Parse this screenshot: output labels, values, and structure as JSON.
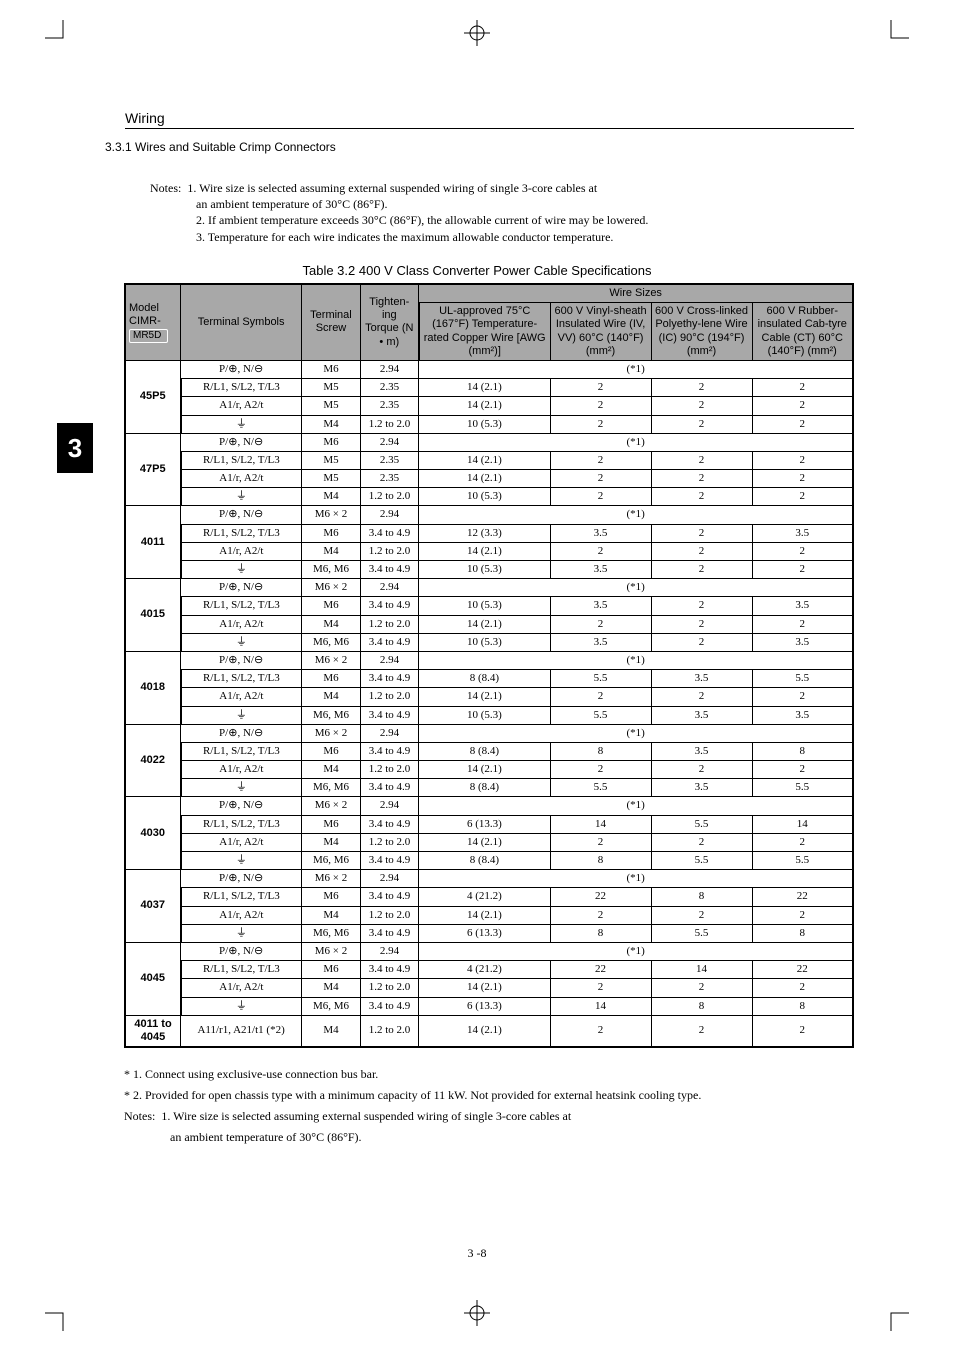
{
  "running_head": "Wiring",
  "subhead": "3.3.1 Wires and Suitable Crimp Connectors",
  "chapter_tab": "3",
  "top_notes": {
    "label": "Notes:",
    "items": [
      "1. Wire size is selected assuming external suspended wiring of single 3-core cables at",
      "an ambient temperature of 30°C (86°F).",
      "2. If ambient temperature exceeds 30°C (86°F), the allowable current of wire may be lowered.",
      "3. Temperature for each wire indicates the maximum allowable conductor temperature."
    ]
  },
  "table_caption": "Table 3.2    400 V Class Converter Power Cable Specifications",
  "head": {
    "model": "Model CIMR-",
    "mr5": "MR5D",
    "ts": "Terminal Symbols",
    "screw": "Terminal Screw",
    "torque": "Tighten-ing Torque (N • m)",
    "wiresizes": "Wire Sizes",
    "c5": "UL-approved 75°C (167°F) Temperature-rated Copper Wire [AWG (mm²)]",
    "c6": "600 V Vinyl-sheath Insulated Wire (IV, VV) 60°C (140°F) (mm²)",
    "c7": "600 V Cross-linked Polyethy-lene Wire (IC) 90°C (194°F) (mm²)",
    "c8": "600 V Rubber-insulated Cab-tyre Cable (CT) 60°C (140°F) (mm²)"
  },
  "groups": [
    {
      "model": "45P5",
      "rows": [
        {
          "sym": "P/⊕, N/⊖",
          "screw": "M6",
          "torque": "2.94",
          "star": true
        },
        {
          "sym": "R/L1, S/L2, T/L3",
          "screw": "M5",
          "torque": "2.35",
          "c5": "14 (2.1)",
          "c6": "2",
          "c7": "2",
          "c8": "2"
        },
        {
          "sym": "A1/r, A2/t",
          "screw": "M5",
          "torque": "2.35",
          "c5": "14 (2.1)",
          "c6": "2",
          "c7": "2",
          "c8": "2"
        },
        {
          "sym": "GND",
          "screw": "M4",
          "torque": "1.2 to 2.0",
          "c5": "10 (5.3)",
          "c6": "2",
          "c7": "2",
          "c8": "2"
        }
      ]
    },
    {
      "model": "47P5",
      "rows": [
        {
          "sym": "P/⊕, N/⊖",
          "screw": "M6",
          "torque": "2.94",
          "star": true
        },
        {
          "sym": "R/L1, S/L2, T/L3",
          "screw": "M5",
          "torque": "2.35",
          "c5": "14 (2.1)",
          "c6": "2",
          "c7": "2",
          "c8": "2"
        },
        {
          "sym": "A1/r, A2/t",
          "screw": "M5",
          "torque": "2.35",
          "c5": "14 (2.1)",
          "c6": "2",
          "c7": "2",
          "c8": "2"
        },
        {
          "sym": "GND",
          "screw": "M4",
          "torque": "1.2 to 2.0",
          "c5": "10 (5.3)",
          "c6": "2",
          "c7": "2",
          "c8": "2"
        }
      ]
    },
    {
      "model": "4011",
      "rows": [
        {
          "sym": "P/⊕, N/⊖",
          "screw": "M6 × 2",
          "torque": "2.94",
          "star": true
        },
        {
          "sym": "R/L1, S/L2, T/L3",
          "screw": "M6",
          "torque": "3.4 to 4.9",
          "c5": "12 (3.3)",
          "c6": "3.5",
          "c7": "2",
          "c8": "3.5"
        },
        {
          "sym": "A1/r, A2/t",
          "screw": "M4",
          "torque": "1.2 to 2.0",
          "c5": "14 (2.1)",
          "c6": "2",
          "c7": "2",
          "c8": "2"
        },
        {
          "sym": "GND",
          "screw": "M6, M6",
          "torque": "3.4 to 4.9",
          "c5": "10 (5.3)",
          "c6": "3.5",
          "c7": "2",
          "c8": "2"
        }
      ]
    },
    {
      "model": "4015",
      "rows": [
        {
          "sym": "P/⊕, N/⊖",
          "screw": "M6 × 2",
          "torque": "2.94",
          "star": true
        },
        {
          "sym": "R/L1, S/L2, T/L3",
          "screw": "M6",
          "torque": "3.4 to 4.9",
          "c5": "10 (5.3)",
          "c6": "3.5",
          "c7": "2",
          "c8": "3.5"
        },
        {
          "sym": "A1/r, A2/t",
          "screw": "M4",
          "torque": "1.2 to 2.0",
          "c5": "14 (2.1)",
          "c6": "2",
          "c7": "2",
          "c8": "2"
        },
        {
          "sym": "GND",
          "screw": "M6, M6",
          "torque": "3.4 to 4.9",
          "c5": "10 (5.3)",
          "c6": "3.5",
          "c7": "2",
          "c8": "3.5"
        }
      ]
    },
    {
      "model": "4018",
      "rows": [
        {
          "sym": "P/⊕, N/⊖",
          "screw": "M6 × 2",
          "torque": "2.94",
          "star": true
        },
        {
          "sym": "R/L1, S/L2, T/L3",
          "screw": "M6",
          "torque": "3.4 to 4.9",
          "c5": "8 (8.4)",
          "c6": "5.5",
          "c7": "3.5",
          "c8": "5.5"
        },
        {
          "sym": "A1/r, A2/t",
          "screw": "M4",
          "torque": "1.2 to 2.0",
          "c5": "14 (2.1)",
          "c6": "2",
          "c7": "2",
          "c8": "2"
        },
        {
          "sym": "GND",
          "screw": "M6, M6",
          "torque": "3.4 to 4.9",
          "c5": "10 (5.3)",
          "c6": "5.5",
          "c7": "3.5",
          "c8": "3.5"
        }
      ]
    },
    {
      "model": "4022",
      "rows": [
        {
          "sym": "P/⊕, N/⊖",
          "screw": "M6 × 2",
          "torque": "2.94",
          "star": true
        },
        {
          "sym": "R/L1, S/L2, T/L3",
          "screw": "M6",
          "torque": "3.4 to 4.9",
          "c5": "8 (8.4)",
          "c6": "8",
          "c7": "3.5",
          "c8": "8"
        },
        {
          "sym": "A1/r, A2/t",
          "screw": "M4",
          "torque": "1.2 to 2.0",
          "c5": "14 (2.1)",
          "c6": "2",
          "c7": "2",
          "c8": "2"
        },
        {
          "sym": "GND",
          "screw": "M6, M6",
          "torque": "3.4 to 4.9",
          "c5": "8 (8.4)",
          "c6": "5.5",
          "c7": "3.5",
          "c8": "5.5"
        }
      ]
    },
    {
      "model": "4030",
      "rows": [
        {
          "sym": "P/⊕, N/⊖",
          "screw": "M6 × 2",
          "torque": "2.94",
          "star": true
        },
        {
          "sym": "R/L1, S/L2, T/L3",
          "screw": "M6",
          "torque": "3.4 to 4.9",
          "c5": "6 (13.3)",
          "c6": "14",
          "c7": "5.5",
          "c8": "14"
        },
        {
          "sym": "A1/r, A2/t",
          "screw": "M4",
          "torque": "1.2 to 2.0",
          "c5": "14 (2.1)",
          "c6": "2",
          "c7": "2",
          "c8": "2"
        },
        {
          "sym": "GND",
          "screw": "M6, M6",
          "torque": "3.4 to 4.9",
          "c5": "8 (8.4)",
          "c6": "8",
          "c7": "5.5",
          "c8": "5.5"
        }
      ]
    },
    {
      "model": "4037",
      "rows": [
        {
          "sym": "P/⊕, N/⊖",
          "screw": "M6 × 2",
          "torque": "2.94",
          "star": true
        },
        {
          "sym": "R/L1, S/L2, T/L3",
          "screw": "M6",
          "torque": "3.4 to 4.9",
          "c5": "4 (21.2)",
          "c6": "22",
          "c7": "8",
          "c8": "22"
        },
        {
          "sym": "A1/r, A2/t",
          "screw": "M4",
          "torque": "1.2 to 2.0",
          "c5": "14 (2.1)",
          "c6": "2",
          "c7": "2",
          "c8": "2"
        },
        {
          "sym": "GND",
          "screw": "M6, M6",
          "torque": "3.4 to 4.9",
          "c5": "6 (13.3)",
          "c6": "8",
          "c7": "5.5",
          "c8": "8"
        }
      ]
    },
    {
      "model": "4045",
      "rows": [
        {
          "sym": "P/⊕, N/⊖",
          "screw": "M6 × 2",
          "torque": "2.94",
          "star": true
        },
        {
          "sym": "R/L1, S/L2, T/L3",
          "screw": "M6",
          "torque": "3.4 to 4.9",
          "c5": "4 (21.2)",
          "c6": "22",
          "c7": "14",
          "c8": "22"
        },
        {
          "sym": "A1/r, A2/t",
          "screw": "M4",
          "torque": "1.2 to 2.0",
          "c5": "14 (2.1)",
          "c6": "2",
          "c7": "2",
          "c8": "2"
        },
        {
          "sym": "GND",
          "screw": "M6, M6",
          "torque": "3.4 to 4.9",
          "c5": "6 (13.3)",
          "c6": "14",
          "c7": "8",
          "c8": "8"
        }
      ]
    }
  ],
  "last_row": {
    "model": "4011 to 4045",
    "sym": "A11/r1, A21/t1 (*2)",
    "screw": "M4",
    "torque": "1.2 to 2.0",
    "c5": "14 (2.1)",
    "c6": "2",
    "c7": "2",
    "c8": "2"
  },
  "star_label": "(*1)",
  "footnotes": {
    "f1": "* 1.  Connect using exclusive-use connection bus bar.",
    "f2": "* 2.  Provided for open chassis type with a minimum capacity of 11 kW. Not provided for external heatsink cooling type.",
    "notes_label": "Notes:",
    "n1": "1. Wire size is selected assuming external suspended wiring of single 3-core cables at",
    "n1b": "an ambient temperature of 30°C (86°F)."
  },
  "pageno": "3 -8"
}
